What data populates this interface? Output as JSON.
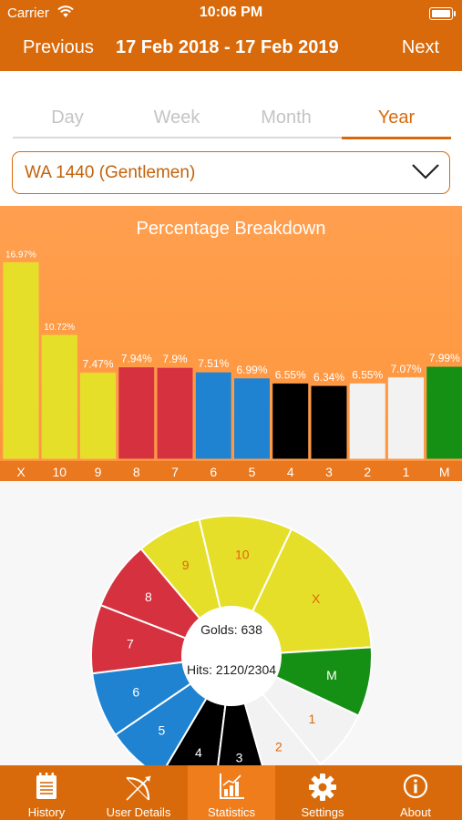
{
  "status_bar": {
    "carrier": "Carrier",
    "time": "10:06 PM"
  },
  "nav": {
    "previous": "Previous",
    "title": "17 Feb 2018 - 17 Feb 2019",
    "next": "Next"
  },
  "segments": [
    "Day",
    "Week",
    "Month",
    "Year"
  ],
  "selected_segment": "Year",
  "round_select": {
    "value": "WA 1440 (Gentlemen)"
  },
  "chart_data": [
    {
      "type": "bar",
      "title": "Percentage Breakdown",
      "categories": [
        "X",
        "10",
        "9",
        "8",
        "7",
        "6",
        "5",
        "4",
        "3",
        "2",
        "1",
        "M"
      ],
      "values": [
        16.97,
        10.72,
        7.47,
        7.94,
        7.9,
        7.51,
        6.99,
        6.55,
        6.34,
        6.55,
        7.07,
        7.99
      ],
      "value_labels": [
        "16.97%",
        "10.72%",
        "7.47%",
        "7.94%",
        "7.9%",
        "7.51%",
        "6.99%",
        "6.55%",
        "6.34%",
        "6.55%",
        "7.07%",
        "7.99%"
      ],
      "colors": [
        "#e6df2a",
        "#e6df2a",
        "#e6df2a",
        "#d6313f",
        "#d6313f",
        "#1f83d1",
        "#1f83d1",
        "#000000",
        "#000000",
        "#f2f2f2",
        "#f2f2f2",
        "#159015"
      ],
      "ylim": [
        0,
        17
      ]
    },
    {
      "type": "pie",
      "categories": [
        "X",
        "10",
        "9",
        "8",
        "7",
        "6",
        "5",
        "4",
        "3",
        "2",
        "1",
        "M"
      ],
      "values": [
        16.97,
        10.72,
        7.47,
        7.94,
        7.9,
        7.51,
        6.99,
        6.55,
        6.34,
        6.55,
        7.07,
        7.99
      ],
      "colors": [
        "#e6df2a",
        "#e6df2a",
        "#e6df2a",
        "#d6313f",
        "#d6313f",
        "#1f83d1",
        "#1f83d1",
        "#000000",
        "#000000",
        "#f2f2f2",
        "#f2f2f2",
        "#159015"
      ],
      "label_colors": [
        "#d96a0b",
        "#d96a0b",
        "#d96a0b",
        "#ffffff",
        "#ffffff",
        "#ffffff",
        "#ffffff",
        "#ffffff",
        "#ffffff",
        "#d96a0b",
        "#d96a0b",
        "#ffffff"
      ],
      "center_lines": [
        "Golds: 638",
        "Hits: 2120/2304"
      ]
    }
  ],
  "tabs": [
    {
      "label": "History",
      "icon": "history-icon"
    },
    {
      "label": "User Details",
      "icon": "bow-icon"
    },
    {
      "label": "Statistics",
      "icon": "statistics-icon"
    },
    {
      "label": "Settings",
      "icon": "gear-icon"
    },
    {
      "label": "About",
      "icon": "info-icon"
    }
  ],
  "active_tab": "Statistics",
  "colors": {
    "accent": "#d96a0b",
    "chart_bg": "#ff9a44",
    "tab_active": "#f07d1c"
  }
}
